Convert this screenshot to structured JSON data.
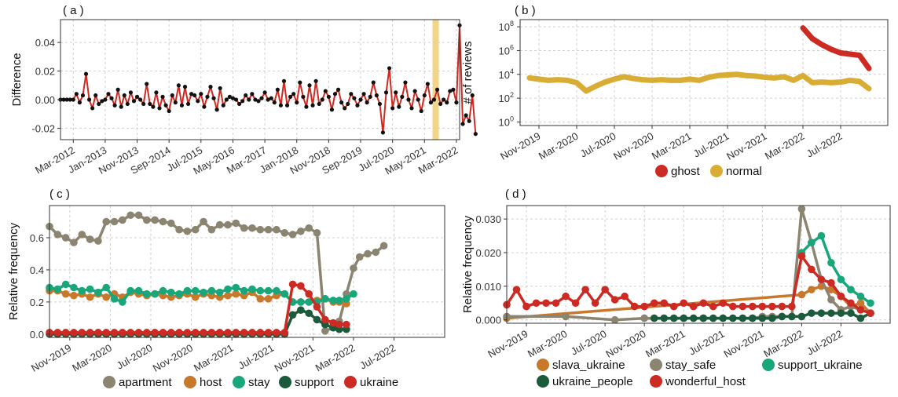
{
  "chart_data": [
    {
      "id": "a",
      "type": "line",
      "panel_label": "( a )",
      "ylabel": "Difference",
      "ylim": [
        -0.028,
        0.056
      ],
      "yticks": [
        -0.02,
        0.0,
        0.02,
        0.04
      ],
      "ytick_labels": [
        "-0.02",
        "0.00",
        "0.02",
        "0.04"
      ],
      "xlim": [
        0,
        125
      ],
      "xtick_labels": [
        {
          "x": 4,
          "label": "Mar-2012"
        },
        {
          "x": 14,
          "label": "Jan-2013"
        },
        {
          "x": 24,
          "label": "Nov-2013"
        },
        {
          "x": 34,
          "label": "Sep-2014"
        },
        {
          "x": 44,
          "label": "Jul-2015"
        },
        {
          "x": 54,
          "label": "May-2016"
        },
        {
          "x": 64,
          "label": "Mar-2017"
        },
        {
          "x": 74,
          "label": "Jan-2018"
        },
        {
          "x": 84,
          "label": "Nov-2018"
        },
        {
          "x": 94,
          "label": "Sep-2019"
        },
        {
          "x": 104,
          "label": "Jul-2020"
        },
        {
          "x": 114,
          "label": "May-2021"
        },
        {
          "x": 124,
          "label": "Mar-2022"
        }
      ],
      "highlight_x": [
        117,
        118
      ],
      "highlight_color": "#f3d58a",
      "line_color": "#cc2a22",
      "point_color": "#111111",
      "values": [
        0.0,
        0.0,
        0.0,
        0.0,
        0.0,
        0.004,
        -0.002,
        0.003,
        0.018,
        0.0,
        -0.006,
        0.003,
        -0.003,
        -0.001,
        0.0,
        0.004,
        0.001,
        -0.004,
        0.007,
        -0.005,
        0.003,
        -0.003,
        0.005,
        -0.001,
        0.002,
        0.0,
        -0.003,
        0.011,
        -0.003,
        -0.005,
        0.005,
        -0.006,
        0.002,
        -0.004,
        -0.008,
        0.003,
        -0.002,
        0.01,
        -0.004,
        0.009,
        -0.003,
        0.004,
        0.003,
        -0.001,
        0.004,
        -0.005,
        0.002,
        0.009,
        0.001,
        -0.007,
        0.008,
        -0.004,
        0.0,
        0.002,
        0.001,
        0.0,
        -0.003,
        -0.001,
        0.003,
        0.0,
        0.004,
        0.0,
        -0.001,
        0.001,
        0.005,
        0.0,
        0.001,
        -0.002,
        0.007,
        -0.004,
        0.013,
        -0.004,
        0.002,
        0.004,
        -0.002,
        0.012,
        0.002,
        -0.005,
        0.01,
        -0.004,
        0.013,
        -0.003,
        0.0,
        0.006,
        0.002,
        -0.007,
        0.004,
        0.007,
        -0.002,
        -0.006,
        -0.003,
        0.004,
        0.001,
        -0.004,
        0.0,
        0.004,
        -0.002,
        0.002,
        0.012,
        0.003,
        -0.003,
        -0.023,
        0.005,
        0.022,
        -0.006,
        0.005,
        -0.005,
        0.002,
        0.012,
        0.0,
        -0.006,
        0.006,
        0.0,
        -0.008,
        0.003,
        0.011,
        -0.002,
        0.0,
        0.007,
        -0.003,
        0.0,
        -0.002,
        0.006,
        0.007,
        -0.002,
        0.052,
        -0.017,
        -0.011,
        -0.015,
        0.003,
        -0.024
      ]
    },
    {
      "id": "b",
      "type": "line",
      "panel_label": "( b )",
      "ylabel": "# of reviews",
      "yscale": "log10",
      "ylim_exp": [
        -0.3,
        8.6
      ],
      "ytick_exp": [
        0,
        2,
        4,
        6,
        8
      ],
      "ytick_labels": [
        {
          "base": "10",
          "exp": "0"
        },
        {
          "base": "10",
          "exp": "2"
        },
        {
          "base": "10",
          "exp": "4"
        },
        {
          "base": "10",
          "exp": "6"
        },
        {
          "base": "10",
          "exp": "8"
        }
      ],
      "xlim": [
        0,
        39
      ],
      "xtick_labels": [
        {
          "x": 2,
          "label": "Nov-2019"
        },
        {
          "x": 6,
          "label": "Mar-2020"
        },
        {
          "x": 10,
          "label": "Jul-2020"
        },
        {
          "x": 14,
          "label": "Nov-2020"
        },
        {
          "x": 18,
          "label": "Mar-2021"
        },
        {
          "x": 22,
          "label": "Jul-2021"
        },
        {
          "x": 26,
          "label": "Nov-2021"
        },
        {
          "x": 30,
          "label": "Mar-2022"
        },
        {
          "x": 34,
          "label": "Jul-2022"
        }
      ],
      "series": [
        {
          "name": "ghost",
          "color": "#cc2a22",
          "x": [
            30,
            31,
            32,
            33,
            34,
            35,
            36,
            37
          ],
          "y_exp": [
            7.9,
            7.0,
            6.5,
            6.1,
            5.8,
            5.7,
            5.6,
            4.5
          ]
        },
        {
          "name": "normal",
          "color": "#d9ac33",
          "x": [
            1,
            2,
            3,
            4,
            5,
            6,
            7,
            8,
            9,
            10,
            11,
            12,
            13,
            14,
            15,
            16,
            17,
            18,
            19,
            20,
            21,
            22,
            23,
            24,
            25,
            26,
            27,
            28,
            29,
            30,
            31,
            32,
            33,
            34,
            35,
            36,
            37
          ],
          "y_exp": [
            3.7,
            3.6,
            3.5,
            3.55,
            3.5,
            3.3,
            2.6,
            3.0,
            3.35,
            3.6,
            3.8,
            3.65,
            3.55,
            3.5,
            3.55,
            3.5,
            3.5,
            3.6,
            3.5,
            3.75,
            3.9,
            3.95,
            4.0,
            3.9,
            3.85,
            3.75,
            3.7,
            3.8,
            3.5,
            3.9,
            3.3,
            3.35,
            3.3,
            3.35,
            3.5,
            3.4,
            2.8
          ]
        }
      ],
      "legend": [
        {
          "name": "ghost",
          "color": "#cc2a22"
        },
        {
          "name": "normal",
          "color": "#d9ac33"
        }
      ]
    },
    {
      "id": "c",
      "type": "line",
      "panel_label": "( c )",
      "ylabel": "Relative frequency",
      "ylim": [
        -0.02,
        0.8
      ],
      "yticks": [
        0.0,
        0.2,
        0.4,
        0.6
      ],
      "ytick_labels": [
        "0.0",
        "0.2",
        "0.4",
        "0.6"
      ],
      "xlim": [
        0,
        39
      ],
      "xtick_labels": [
        {
          "x": 2,
          "label": "Nov-2019"
        },
        {
          "x": 6,
          "label": "Mar-2020"
        },
        {
          "x": 10,
          "label": "Jul-2020"
        },
        {
          "x": 14,
          "label": "Nov-2020"
        },
        {
          "x": 18,
          "label": "Mar-2021"
        },
        {
          "x": 22,
          "label": "Jul-2021"
        },
        {
          "x": 26,
          "label": "Nov-2021"
        },
        {
          "x": 30,
          "label": "Mar-2022"
        },
        {
          "x": 34,
          "label": "Jul-2022"
        }
      ],
      "x": [
        0,
        0.8,
        1.6,
        2.4,
        3.2,
        4,
        4.8,
        5.6,
        6.4,
        7.2,
        8,
        8.8,
        9.6,
        10.4,
        11.2,
        12,
        12.8,
        13.6,
        14.4,
        15.2,
        16,
        16.8,
        17.6,
        18.4,
        19.2,
        20,
        20.8,
        21.6,
        22.4,
        23.2,
        24,
        24.8,
        25.6,
        26.4,
        27.2,
        28,
        28.6,
        29.3,
        30,
        30.6,
        31.4,
        32.2,
        33,
        33.8,
        34.6,
        35.4,
        36.2
      ],
      "series": [
        {
          "name": "apartment",
          "color": "#8b8471",
          "values": [
            0.67,
            0.62,
            0.6,
            0.57,
            0.62,
            0.59,
            0.58,
            0.7,
            0.7,
            0.71,
            0.74,
            0.74,
            0.71,
            0.71,
            0.7,
            0.69,
            0.65,
            0.64,
            0.65,
            0.7,
            0.65,
            0.68,
            0.68,
            0.69,
            0.66,
            0.66,
            0.65,
            0.65,
            0.65,
            0.63,
            0.62,
            0.64,
            0.66,
            0.63,
            0.02,
            0.04,
            0.08,
            0.25,
            0.41,
            0.48,
            0.5,
            0.51,
            0.55,
            null,
            null,
            null,
            null
          ]
        },
        {
          "name": "host",
          "color": "#c8782a",
          "values": [
            0.27,
            0.27,
            0.25,
            0.24,
            0.25,
            0.23,
            0.25,
            0.23,
            0.25,
            0.23,
            0.26,
            0.25,
            0.24,
            0.25,
            0.24,
            0.23,
            0.24,
            0.25,
            0.23,
            0.25,
            0.24,
            0.23,
            0.24,
            0.25,
            0.24,
            0.26,
            0.22,
            0.22,
            0.24,
            0.25,
            0.2,
            0.2,
            0.2,
            0.21,
            0.22,
            0.2,
            0.2,
            0.19,
            null,
            null,
            null,
            null,
            null,
            null,
            null,
            null,
            null
          ]
        },
        {
          "name": "stay",
          "color": "#19a67b",
          "values": [
            0.29,
            0.28,
            0.31,
            0.29,
            0.27,
            0.28,
            0.26,
            0.29,
            0.22,
            0.2,
            0.27,
            0.27,
            0.25,
            0.25,
            0.27,
            0.26,
            0.25,
            0.27,
            0.27,
            0.26,
            0.27,
            0.26,
            0.28,
            0.29,
            0.27,
            0.28,
            0.27,
            0.27,
            0.27,
            0.25,
            0.2,
            0.2,
            0.2,
            0.2,
            0.22,
            0.21,
            0.21,
            0.22,
            0.25,
            null,
            null,
            null,
            null,
            null,
            null,
            null,
            null
          ]
        },
        {
          "name": "support",
          "color": "#1b5a3a",
          "values": [
            0.0,
            0.0,
            0.0,
            0.0,
            0.0,
            0.0,
            0.0,
            0.0,
            0.0,
            0.0,
            0.0,
            0.0,
            0.0,
            0.0,
            0.0,
            0.0,
            0.0,
            0.0,
            0.0,
            0.0,
            0.0,
            0.0,
            0.0,
            0.0,
            0.0,
            0.0,
            0.0,
            0.0,
            0.0,
            0.0,
            0.12,
            0.15,
            0.13,
            0.09,
            0.06,
            0.04,
            0.03,
            0.03,
            null,
            null,
            null,
            null,
            null,
            null,
            null,
            null,
            null
          ]
        },
        {
          "name": "ukraine",
          "color": "#cc2a22",
          "values": [
            0.01,
            0.01,
            0.01,
            0.01,
            0.01,
            0.01,
            0.01,
            0.01,
            0.01,
            0.01,
            0.01,
            0.01,
            0.01,
            0.01,
            0.01,
            0.01,
            0.01,
            0.01,
            0.01,
            0.01,
            0.01,
            0.01,
            0.01,
            0.01,
            0.01,
            0.01,
            0.01,
            0.01,
            0.01,
            0.01,
            0.31,
            0.3,
            0.25,
            0.17,
            0.09,
            0.07,
            0.06,
            0.06,
            null,
            null,
            null,
            null,
            null,
            null,
            null,
            null,
            null
          ]
        }
      ],
      "legend": [
        {
          "name": "apartment",
          "color": "#8b8471"
        },
        {
          "name": "host",
          "color": "#c8782a"
        },
        {
          "name": "stay",
          "color": "#19a67b"
        },
        {
          "name": "support",
          "color": "#1b5a3a"
        },
        {
          "name": "ukraine",
          "color": "#cc2a22"
        }
      ]
    },
    {
      "id": "d",
      "type": "line",
      "panel_label": "( d )",
      "ylabel": "Relative frequency",
      "ylim": [
        -0.001,
        0.034
      ],
      "yticks": [
        0.0,
        0.01,
        0.02,
        0.03
      ],
      "ytick_labels": [
        "0.000",
        "0.010",
        "0.020",
        "0.030"
      ],
      "xlim": [
        0,
        39
      ],
      "xtick_labels": [
        {
          "x": 2,
          "label": "Nov-2019"
        },
        {
          "x": 6,
          "label": "Mar-2020"
        },
        {
          "x": 10,
          "label": "Jul-2020"
        },
        {
          "x": 14,
          "label": "Nov-2020"
        },
        {
          "x": 18,
          "label": "Mar-2021"
        },
        {
          "x": 22,
          "label": "Jul-2021"
        },
        {
          "x": 26,
          "label": "Nov-2021"
        },
        {
          "x": 30,
          "label": "Mar-2022"
        },
        {
          "x": 34,
          "label": "Jul-2022"
        }
      ],
      "series": [
        {
          "name": "slava_ukraine",
          "color": "#c8782a",
          "x": [
            0,
            30,
            31,
            32,
            33,
            34,
            35,
            36,
            37
          ],
          "values": [
            0.0005,
            0.0075,
            0.009,
            0.01,
            0.009,
            0.007,
            0.004,
            0.005,
            0.002
          ]
        },
        {
          "name": "stay_safe",
          "color": "#8b8471",
          "x": [
            0,
            6,
            11,
            14,
            20,
            25,
            26,
            27,
            28,
            29,
            30,
            31,
            32,
            33,
            34,
            35,
            36,
            37
          ],
          "values": [
            0.001,
            0.001,
            0.0,
            0.0005,
            0.0005,
            0.0005,
            0.001,
            0.001,
            0.001,
            0.001,
            0.033,
            0.023,
            0.012,
            0.006,
            0.003,
            0.004,
            0.003,
            0.002
          ]
        },
        {
          "name": "support_ukraine",
          "color": "#19a67b",
          "x": [
            30,
            31,
            32,
            33,
            34,
            35,
            36,
            37
          ],
          "values": [
            0.02,
            0.023,
            0.025,
            0.017,
            0.012,
            0.009,
            0.007,
            0.005
          ]
        },
        {
          "name": "ukraine_people",
          "color": "#1b5a3a",
          "x": [
            15,
            16,
            17,
            18,
            19,
            20,
            21,
            22,
            23,
            24,
            25,
            26,
            27,
            28,
            29,
            30,
            31,
            32,
            33,
            34,
            35,
            36,
            37
          ],
          "values": [
            0.0005,
            0.0005,
            0.0005,
            0.0005,
            0.0005,
            0.0005,
            0.0005,
            0.0005,
            0.0005,
            0.0005,
            0.0005,
            0.0005,
            0.0005,
            0.001,
            0.001,
            0.001,
            0.002,
            0.002,
            0.002,
            0.002,
            0.002,
            0.0005,
            0.002
          ]
        },
        {
          "name": "wonderful_host",
          "color": "#cc2a22",
          "x": [
            0,
            1,
            2,
            3,
            4,
            5,
            6,
            7,
            8,
            9,
            10,
            11,
            12,
            13,
            14,
            15,
            16,
            17,
            18,
            19,
            20,
            21,
            22,
            23,
            24,
            25,
            26,
            27,
            28,
            29,
            30,
            31,
            32,
            33,
            34,
            35,
            36,
            37
          ],
          "values": [
            0.0045,
            0.009,
            0.004,
            0.005,
            0.005,
            0.005,
            0.007,
            0.005,
            0.009,
            0.005,
            0.009,
            0.006,
            0.007,
            0.004,
            0.004,
            0.005,
            0.005,
            0.004,
            0.005,
            0.004,
            0.005,
            0.004,
            0.005,
            0.004,
            0.004,
            0.004,
            0.004,
            0.004,
            0.004,
            0.004,
            0.019,
            0.015,
            0.012,
            0.011,
            0.007,
            0.005,
            0.003,
            0.002
          ]
        }
      ],
      "legend": [
        {
          "name": "slava_ukraine",
          "color": "#c8782a"
        },
        {
          "name": "stay_safe",
          "color": "#8b8471"
        },
        {
          "name": "support_ukraine",
          "color": "#19a67b"
        },
        {
          "name": "ukraine_people",
          "color": "#1b5a3a"
        },
        {
          "name": "wonderful_host",
          "color": "#cc2a22"
        }
      ]
    }
  ]
}
